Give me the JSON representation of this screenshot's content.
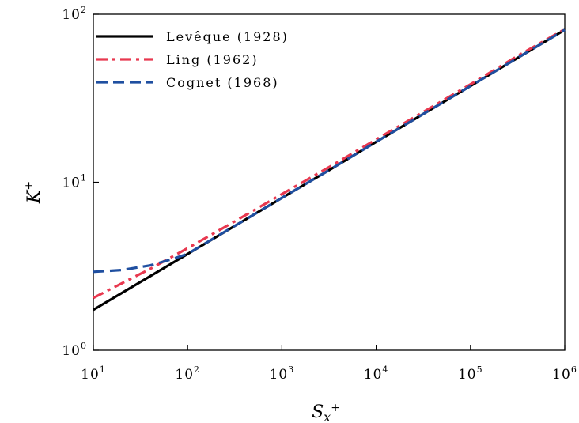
{
  "chart_data": {
    "type": "line",
    "xscale": "log",
    "yscale": "log",
    "xlim": [
      10,
      1000000
    ],
    "ylim": [
      1,
      100
    ],
    "xlabel": "S_x+",
    "ylabel": "K+",
    "xlabel_parts": {
      "base": "S",
      "sub": "x",
      "sup": "+"
    },
    "ylabel_parts": {
      "base": "K",
      "sup": "+"
    },
    "x_ticks": [
      {
        "base": "10",
        "exp": "1",
        "value": 10
      },
      {
        "base": "10",
        "exp": "2",
        "value": 100
      },
      {
        "base": "10",
        "exp": "3",
        "value": 1000
      },
      {
        "base": "10",
        "exp": "4",
        "value": 10000
      },
      {
        "base": "10",
        "exp": "5",
        "value": 100000
      },
      {
        "base": "10",
        "exp": "6",
        "value": 1000000
      }
    ],
    "y_ticks": [
      {
        "base": "10",
        "exp": "0",
        "value": 1
      },
      {
        "base": "10",
        "exp": "1",
        "value": 10
      },
      {
        "base": "10",
        "exp": "2",
        "value": 100
      }
    ],
    "grid": false,
    "legend_position": "top-left",
    "series": [
      {
        "name": "Levêque (1928)",
        "color": "#000000",
        "dash": "solid",
        "x": [
          10,
          31.6,
          100,
          316,
          1000,
          3160,
          10000,
          31600,
          100000,
          316000,
          1000000
        ],
        "y": [
          1.74,
          2.55,
          3.74,
          5.49,
          8.07,
          11.8,
          17.4,
          25.5,
          37.4,
          55.0,
          80.7
        ]
      },
      {
        "name": "Ling (1962)",
        "color": "#e8384f",
        "dash": "dashdot",
        "x": [
          10,
          20,
          40,
          100,
          316,
          1000,
          3160,
          10000,
          31600,
          100000,
          316000,
          1000000
        ],
        "y": [
          2.05,
          2.5,
          3.05,
          4.05,
          5.85,
          8.5,
          12.3,
          18.0,
          26.2,
          38.3,
          56.5,
          81.5
        ]
      },
      {
        "name": "Cognet (1968)",
        "color": "#1f4fa0",
        "dash": "dashed",
        "x": [
          10,
          20,
          40,
          70,
          100,
          316,
          1000,
          3160,
          10000,
          31600,
          100000,
          316000,
          1000000
        ],
        "y": [
          2.93,
          3.0,
          3.2,
          3.5,
          3.75,
          5.5,
          8.07,
          11.8,
          17.4,
          25.5,
          37.4,
          55.0,
          80.7
        ]
      }
    ]
  }
}
